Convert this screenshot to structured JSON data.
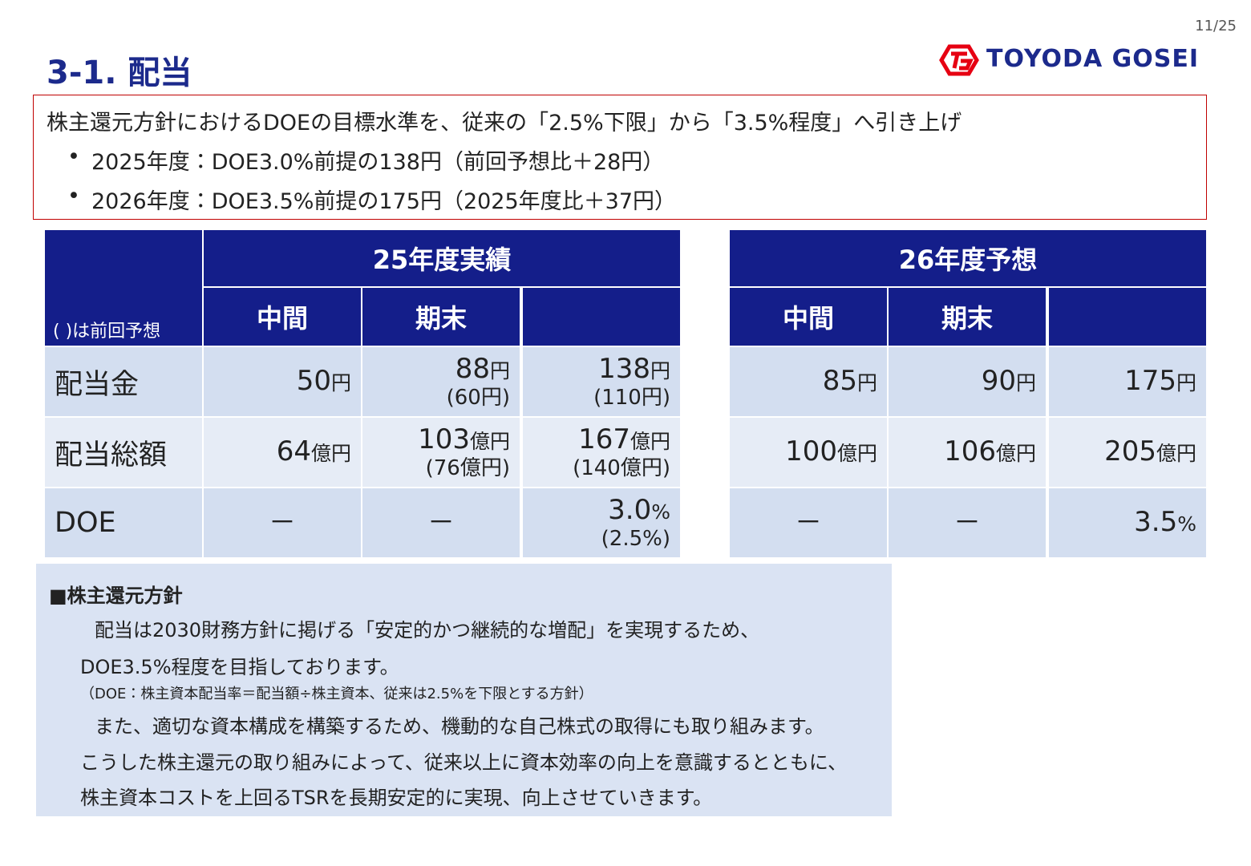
{
  "page_number": "11/25",
  "title": "3-1. 配当",
  "logo": "TOYODA GOSEI",
  "summary": {
    "headline": "株主還元方針におけるDOEの目標水準を、従来の「2.5%下限」から「3.5%程度」へ引き上げ",
    "bullets": [
      "2025年度：DOE3.0%前提の138円（前回予想比＋28円）",
      "2026年度：DOE3.5%前提の175円（2025年度比＋37円）"
    ]
  },
  "row_labels": [
    "配当金",
    "配当総額",
    "DOE"
  ],
  "note": "( )は前回予想",
  "tables": [
    {
      "header": "25年度実績",
      "columns": [
        "中間",
        "期末"
      ],
      "rows": [
        [
          {
            "value": "50",
            "unit": "円"
          },
          {
            "value": "88",
            "unit": "円",
            "previous": "(60円)"
          },
          {
            "value": "138",
            "unit": "円",
            "previous": "(110円)"
          }
        ],
        [
          {
            "value": "64",
            "unit": "億円"
          },
          {
            "value": "103",
            "unit": "億円",
            "previous": "(76億円)"
          },
          {
            "value": "167",
            "unit": "億円",
            "previous": "(140億円)"
          }
        ],
        [
          {
            "value": "－"
          },
          {
            "value": "－"
          },
          {
            "value": "3.0",
            "unit": "%",
            "previous": "(2.5%)"
          }
        ]
      ]
    },
    {
      "header": "26年度予想",
      "columns": [
        "中間",
        "期末"
      ],
      "rows": [
        [
          {
            "value": "85",
            "unit": "円"
          },
          {
            "value": "90",
            "unit": "円"
          },
          {
            "value": "175",
            "unit": "円"
          }
        ],
        [
          {
            "value": "100",
            "unit": "億円"
          },
          {
            "value": "106",
            "unit": "億円"
          },
          {
            "value": "205",
            "unit": "億円"
          }
        ],
        [
          {
            "value": "－"
          },
          {
            "value": "－"
          },
          {
            "value": "3.5",
            "unit": "%"
          }
        ]
      ]
    }
  ],
  "policy": {
    "heading": "■株主還元方針",
    "lines": [
      "配当は2030財務方針に掲げる「安定的かつ継続的な増配」を実現するため、",
      "DOE3.5%程度を目指しております。",
      "（DOE：株主資本配当率＝配当額÷株主資本、従来は2.5%を下限とする方針）",
      "また、適切な資本構成を構築するため、機動的な自己株式の取得にも取り組みます。",
      "こうした株主還元の取り組みによって、従来以上に資本効率の向上を意識するとともに、",
      "株主資本コストを上回るTSRを長期安定的に実現、向上させていきます。"
    ]
  }
}
